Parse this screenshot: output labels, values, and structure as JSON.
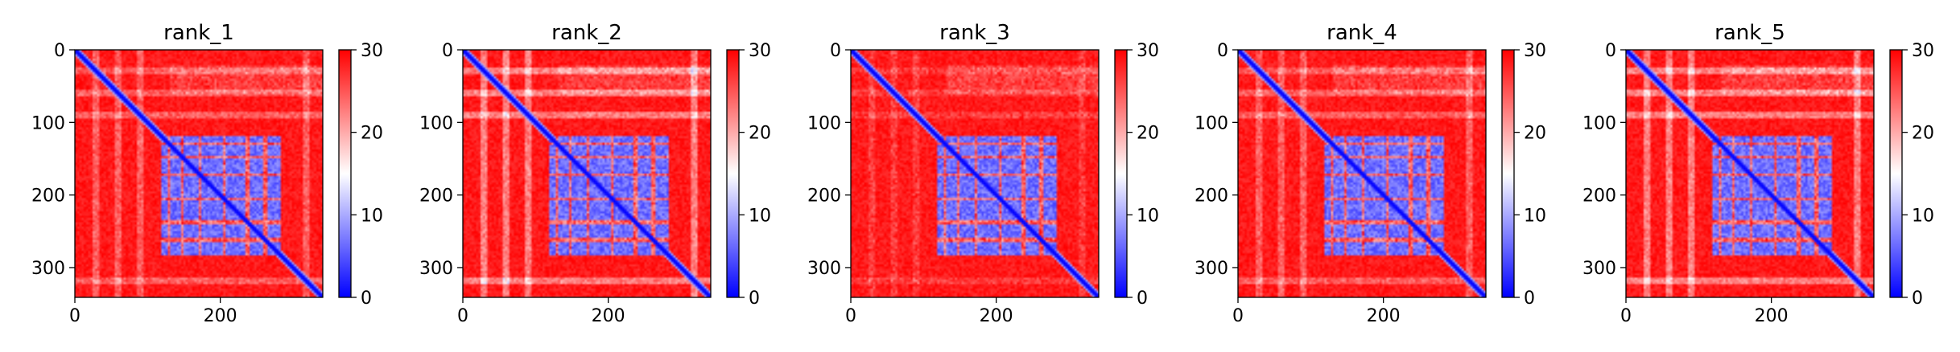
{
  "chart_data": [
    {
      "type": "heatmap",
      "title": "rank_1",
      "xticks": [
        0,
        200
      ],
      "yticks": [
        0,
        100,
        200,
        300
      ],
      "matrix_size": 341,
      "colorbar": {
        "cmap": "bwr",
        "vmin": 0,
        "vmax": 30,
        "ticks": [
          0,
          10,
          20,
          30
        ]
      },
      "colors": {
        "low": "#0000ff",
        "mid": "#ffffff",
        "high": "#ff0000"
      }
    },
    {
      "type": "heatmap",
      "title": "rank_2",
      "xticks": [
        0,
        200
      ],
      "yticks": [
        0,
        100,
        200,
        300
      ],
      "matrix_size": 341,
      "colorbar": {
        "cmap": "bwr",
        "vmin": 0,
        "vmax": 30,
        "ticks": [
          0,
          10,
          20,
          30
        ]
      },
      "colors": {
        "low": "#0000ff",
        "mid": "#ffffff",
        "high": "#ff0000"
      }
    },
    {
      "type": "heatmap",
      "title": "rank_3",
      "xticks": [
        0,
        200
      ],
      "yticks": [
        0,
        100,
        200,
        300
      ],
      "matrix_size": 341,
      "colorbar": {
        "cmap": "bwr",
        "vmin": 0,
        "vmax": 30,
        "ticks": [
          0,
          10,
          20,
          30
        ]
      },
      "colors": {
        "low": "#0000ff",
        "mid": "#ffffff",
        "high": "#ff0000"
      }
    },
    {
      "type": "heatmap",
      "title": "rank_4",
      "xticks": [
        0,
        200
      ],
      "yticks": [
        0,
        100,
        200,
        300
      ],
      "matrix_size": 341,
      "colorbar": {
        "cmap": "bwr",
        "vmin": 0,
        "vmax": 30,
        "ticks": [
          0,
          10,
          20,
          30
        ]
      },
      "colors": {
        "low": "#0000ff",
        "mid": "#ffffff",
        "high": "#ff0000"
      }
    },
    {
      "type": "heatmap",
      "title": "rank_5",
      "xticks": [
        0,
        200
      ],
      "yticks": [
        0,
        100,
        200,
        300
      ],
      "matrix_size": 341,
      "colorbar": {
        "cmap": "bwr",
        "vmin": 0,
        "vmax": 30,
        "ticks": [
          0,
          10,
          20,
          30
        ]
      },
      "colors": {
        "low": "#0000ff",
        "mid": "#ffffff",
        "high": "#ff0000"
      }
    }
  ]
}
